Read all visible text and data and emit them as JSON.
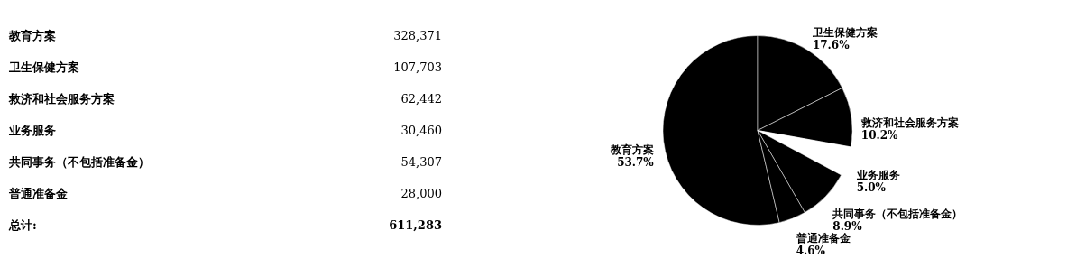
{
  "chart_data": [
    {
      "type": "other",
      "categories": [
        "教育方案",
        "卫生保健方案",
        "救济和社会服务方案",
        "业务服务",
        "共同事务（不包括准备金）",
        "普通准备金"
      ],
      "values": [
        328371,
        107703,
        62442,
        30460,
        54307,
        28000
      ],
      "value_labels": [
        "328,371",
        "107,703",
        "62,442",
        "30,460",
        "54,307",
        "28,000"
      ],
      "totals": [
        "611,283"
      ],
      "annotations": [
        "总计:"
      ]
    },
    {
      "type": "pie",
      "categories": [
        "教育方案",
        "卫生保健方案",
        "救济和社会服务方案",
        "业务服务",
        "共同事务（不包括准备金）",
        "普通准备金"
      ],
      "values": [
        53.7,
        17.6,
        10.2,
        5.0,
        8.9,
        4.6
      ],
      "colors": [
        "#000000",
        "#000000",
        "#000000",
        "#ffffff",
        "#000000",
        "#000000"
      ],
      "value_labels": [
        "53.7%",
        "17.6%",
        "10.2%",
        "5.0%",
        "8.9%",
        "4.6%"
      ]
    }
  ]
}
